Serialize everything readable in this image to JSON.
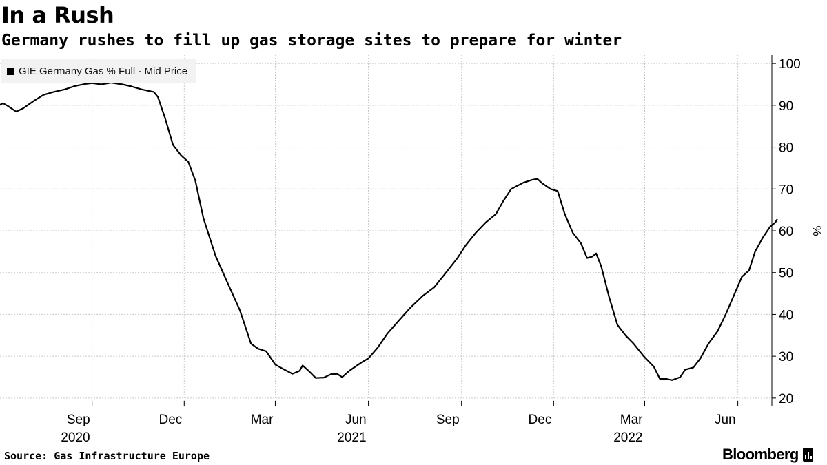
{
  "header": {
    "title": "In a Rush",
    "subtitle": "Germany rushes to fill up gas storage sites to prepare for winter"
  },
  "legend": {
    "label": "GIE Germany Gas % Full - Mid Price"
  },
  "footer": {
    "source": "Source: Gas Infrastructure Europe",
    "brand": "Bloomberg"
  },
  "colors": {
    "line": "#000000",
    "grid": "#c8c8c8",
    "legend_bg": "#f2f2f2"
  },
  "chart_data": {
    "type": "line",
    "title": "In a Rush",
    "subtitle": "Germany rushes to fill up gas storage sites to prepare for winter",
    "ylabel": "%",
    "ylim": [
      18,
      102
    ],
    "y_ticks": [
      20,
      30,
      40,
      50,
      60,
      70,
      80,
      90,
      100
    ],
    "y_axis_side": "right",
    "grid": true,
    "legend_position": "top-left",
    "x_range": [
      "2020-06-01",
      "2022-06-12"
    ],
    "x_ticks": [
      {
        "date": "2020-09-01",
        "label": "Sep",
        "year": "2020"
      },
      {
        "date": "2020-12-01",
        "label": "Dec",
        "year": ""
      },
      {
        "date": "2021-03-01",
        "label": "Mar",
        "year": ""
      },
      {
        "date": "2021-06-01",
        "label": "Jun",
        "year": "2021"
      },
      {
        "date": "2021-09-01",
        "label": "Sep",
        "year": ""
      },
      {
        "date": "2021-12-01",
        "label": "Dec",
        "year": ""
      },
      {
        "date": "2022-03-01",
        "label": "Mar",
        "year": "2022"
      },
      {
        "date": "2022-06-01",
        "label": "Jun",
        "year": ""
      }
    ],
    "series": [
      {
        "name": "GIE Germany Gas % Full - Mid Price",
        "points": [
          [
            "2020-06-01",
            90
          ],
          [
            "2020-06-05",
            90.5
          ],
          [
            "2020-06-10",
            89.8
          ],
          [
            "2020-06-18",
            88.5
          ],
          [
            "2020-06-25",
            89.3
          ],
          [
            "2020-07-05",
            91
          ],
          [
            "2020-07-15",
            92.5
          ],
          [
            "2020-07-25",
            93.2
          ],
          [
            "2020-08-05",
            93.8
          ],
          [
            "2020-08-15",
            94.6
          ],
          [
            "2020-08-25",
            95.1
          ],
          [
            "2020-09-01",
            95.3
          ],
          [
            "2020-09-10",
            95.0
          ],
          [
            "2020-09-20",
            95.4
          ],
          [
            "2020-10-01",
            95.0
          ],
          [
            "2020-10-10",
            94.5
          ],
          [
            "2020-10-20",
            93.8
          ],
          [
            "2020-11-01",
            93.2
          ],
          [
            "2020-11-05",
            92.0
          ],
          [
            "2020-11-12",
            87.0
          ],
          [
            "2020-11-20",
            80.5
          ],
          [
            "2020-11-28",
            78.0
          ],
          [
            "2020-12-05",
            76.5
          ],
          [
            "2020-12-12",
            72.0
          ],
          [
            "2020-12-20",
            63.0
          ],
          [
            "2021-01-01",
            54.0
          ],
          [
            "2021-01-12",
            48.0
          ],
          [
            "2021-01-25",
            41.0
          ],
          [
            "2021-02-05",
            33.0
          ],
          [
            "2021-02-12",
            31.8
          ],
          [
            "2021-02-20",
            31.2
          ],
          [
            "2021-03-01",
            28.0
          ],
          [
            "2021-03-10",
            26.8
          ],
          [
            "2021-03-18",
            25.8
          ],
          [
            "2021-03-25",
            26.5
          ],
          [
            "2021-03-28",
            27.8
          ],
          [
            "2021-04-03",
            26.5
          ],
          [
            "2021-04-10",
            24.8
          ],
          [
            "2021-04-18",
            24.9
          ],
          [
            "2021-04-25",
            25.7
          ],
          [
            "2021-05-01",
            25.8
          ],
          [
            "2021-05-06",
            25.0
          ],
          [
            "2021-05-13",
            26.5
          ],
          [
            "2021-05-25",
            28.5
          ],
          [
            "2021-06-01",
            29.5
          ],
          [
            "2021-06-10",
            32.0
          ],
          [
            "2021-06-20",
            35.5
          ],
          [
            "2021-07-01",
            38.5
          ],
          [
            "2021-07-12",
            41.5
          ],
          [
            "2021-07-25",
            44.5
          ],
          [
            "2021-08-05",
            46.5
          ],
          [
            "2021-08-15",
            49.5
          ],
          [
            "2021-08-28",
            53.5
          ],
          [
            "2021-09-05",
            56.5
          ],
          [
            "2021-09-15",
            59.5
          ],
          [
            "2021-09-25",
            62.0
          ],
          [
            "2021-10-05",
            64.0
          ],
          [
            "2021-10-12",
            67.0
          ],
          [
            "2021-10-20",
            70.0
          ],
          [
            "2021-11-01",
            71.5
          ],
          [
            "2021-11-10",
            72.2
          ],
          [
            "2021-11-15",
            72.4
          ],
          [
            "2021-11-20",
            71.3
          ],
          [
            "2021-11-28",
            70.0
          ],
          [
            "2021-12-05",
            69.5
          ],
          [
            "2021-12-12",
            64.0
          ],
          [
            "2021-12-20",
            59.5
          ],
          [
            "2021-12-28",
            57.0
          ],
          [
            "2022-01-03",
            53.5
          ],
          [
            "2022-01-08",
            53.8
          ],
          [
            "2022-01-12",
            54.6
          ],
          [
            "2022-01-17",
            51.5
          ],
          [
            "2022-01-25",
            44.0
          ],
          [
            "2022-02-02",
            37.5
          ],
          [
            "2022-02-10",
            35.0
          ],
          [
            "2022-02-18",
            33.0
          ],
          [
            "2022-02-28",
            30.0
          ],
          [
            "2022-03-10",
            27.5
          ],
          [
            "2022-03-16",
            24.6
          ],
          [
            "2022-03-22",
            24.6
          ],
          [
            "2022-03-28",
            24.3
          ],
          [
            "2022-04-05",
            25.0
          ],
          [
            "2022-04-10",
            26.8
          ],
          [
            "2022-04-18",
            27.3
          ],
          [
            "2022-04-25",
            29.5
          ],
          [
            "2022-05-03",
            33.0
          ],
          [
            "2022-05-12",
            36.0
          ],
          [
            "2022-05-20",
            40.0
          ],
          [
            "2022-05-28",
            44.5
          ],
          [
            "2022-06-05",
            49.0
          ],
          [
            "2022-06-12",
            50.5
          ],
          [
            "2022-06-18",
            55.0
          ],
          [
            "2022-06-26",
            58.5
          ],
          [
            "2022-07-03",
            61.0
          ],
          [
            "2022-07-08",
            62.0
          ],
          [
            "2022-07-10",
            62.8
          ]
        ]
      }
    ]
  }
}
